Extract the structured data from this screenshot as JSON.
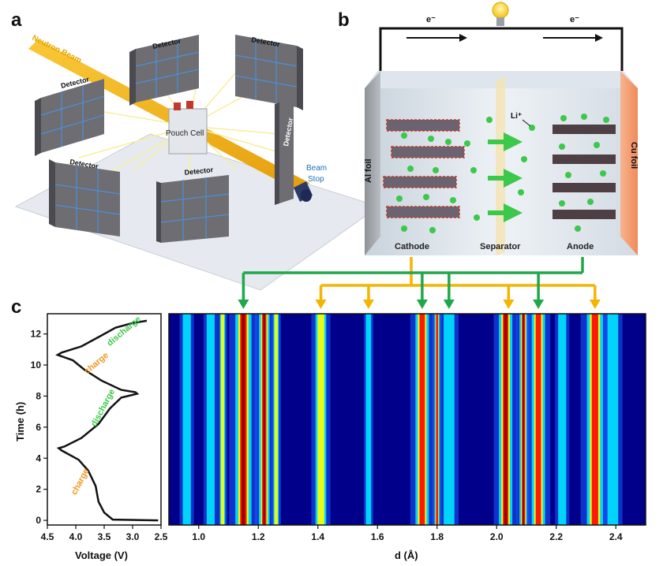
{
  "panels": {
    "a": "a",
    "b": "b",
    "c": "c"
  },
  "panel_a": {
    "neutron_beam": "Neutron Beam",
    "detector_label": "Detector",
    "pouch_cell": "Pouch Cell",
    "beam_stop_line1": "Beam",
    "beam_stop_line2": "Stop",
    "colors": {
      "beam": "#f5b400",
      "detector_face": "#6d6d72",
      "grid_line": "#4d8fd8",
      "ray": "#f7ef9a"
    }
  },
  "panel_b": {
    "electron_left": "e⁻",
    "electron_right": "e⁻",
    "li_ion": "Li⁺",
    "al_foil": "Al foil",
    "cu_foil": "Cu foil",
    "cathode": "Cathode",
    "separator": "Separator",
    "anode": "Anode",
    "colors": {
      "cathode_collector": "#9fa3a8",
      "anode_collector": "#f4a27a",
      "li_ion": "#3cc84a",
      "arrow": "#3cc84a"
    }
  },
  "panel_c": {
    "arrow_colors": {
      "cathode": "#f5b400",
      "anode": "#1fa84a"
    },
    "cathode_arrow_d": [
      1.41,
      1.57,
      2.04,
      2.33
    ],
    "anode_arrow_d": [
      1.15,
      1.75,
      1.84,
      2.14
    ],
    "both_arrow_d": []
  },
  "chart_data": [
    {
      "type": "line",
      "xlabel": "Voltage (V)",
      "ylabel": "Time (h)",
      "x_axis": "reversed",
      "xlim": [
        4.5,
        2.5
      ],
      "ylim": [
        -0.3,
        13.3
      ],
      "x_ticks": [
        "4.5",
        "4.0",
        "3.5",
        "3.0",
        "2.5"
      ],
      "y_ticks": [
        "0",
        "2",
        "4",
        "6",
        "8",
        "10",
        "12"
      ],
      "annotations": [
        "charge",
        "discharge",
        "charge",
        "discharge"
      ],
      "series": [
        {
          "points": [
            [
              2.55,
              0
            ],
            [
              3.35,
              0.05
            ],
            [
              3.5,
              0.5
            ],
            [
              3.6,
              1.2
            ],
            [
              3.65,
              2.2
            ],
            [
              3.78,
              3.2
            ],
            [
              3.95,
              3.9
            ],
            [
              4.25,
              4.5
            ],
            [
              4.3,
              4.65
            ],
            [
              4.2,
              4.75
            ],
            [
              3.9,
              5.3
            ],
            [
              3.6,
              6.2
            ],
            [
              3.4,
              7.2
            ],
            [
              3.2,
              7.9
            ],
            [
              2.92,
              8.15
            ],
            [
              2.95,
              8.25
            ],
            [
              3.2,
              8.4
            ],
            [
              3.55,
              9.0
            ],
            [
              3.85,
              9.7
            ],
            [
              4.05,
              10.3
            ],
            [
              4.32,
              10.65
            ],
            [
              4.25,
              10.8
            ],
            [
              3.9,
              11.2
            ],
            [
              3.6,
              11.8
            ],
            [
              3.3,
              12.4
            ],
            [
              3.0,
              12.7
            ],
            [
              2.75,
              12.85
            ]
          ]
        }
      ]
    },
    {
      "type": "heatmap",
      "xlabel": "d (Å)",
      "xlim": [
        0.9,
        2.5
      ],
      "ylim": [
        0,
        13
      ],
      "x_ticks": [
        "1.0",
        "1.2",
        "1.4",
        "1.6",
        "1.8",
        "2.0",
        "2.2",
        "2.4"
      ],
      "colorscale": [
        "#00008b",
        "#1e5bff",
        "#00e5ff",
        "#ffff00",
        "#ff0000",
        "#8b0000"
      ],
      "peaks": [
        {
          "d": 0.96,
          "intensity": 0.45,
          "width": 0.006
        },
        {
          "d": 1.04,
          "intensity": 0.3,
          "width": 0.006
        },
        {
          "d": 1.08,
          "intensity": 0.55,
          "width": 0.004
        },
        {
          "d": 1.15,
          "intensity": 1.0,
          "width": 0.012
        },
        {
          "d": 1.22,
          "intensity": 0.95,
          "width": 0.008
        },
        {
          "d": 1.26,
          "intensity": 0.6,
          "width": 0.004
        },
        {
          "d": 1.41,
          "intensity": 0.5,
          "width": 0.008
        },
        {
          "d": 1.57,
          "intensity": 0.45,
          "width": 0.004
        },
        {
          "d": 1.75,
          "intensity": 0.75,
          "width": 0.01
        },
        {
          "d": 1.8,
          "intensity": 0.7,
          "width": 0.004
        },
        {
          "d": 1.84,
          "intensity": 0.35,
          "width": 0.008
        },
        {
          "d": 2.03,
          "intensity": 1.0,
          "width": 0.01
        },
        {
          "d": 2.09,
          "intensity": 0.9,
          "width": 0.006
        },
        {
          "d": 2.14,
          "intensity": 0.75,
          "width": 0.01
        },
        {
          "d": 2.22,
          "intensity": 0.3,
          "width": 0.006
        },
        {
          "d": 2.33,
          "intensity": 0.85,
          "width": 0.012
        },
        {
          "d": 2.39,
          "intensity": 0.25,
          "width": 0.008
        }
      ]
    }
  ]
}
